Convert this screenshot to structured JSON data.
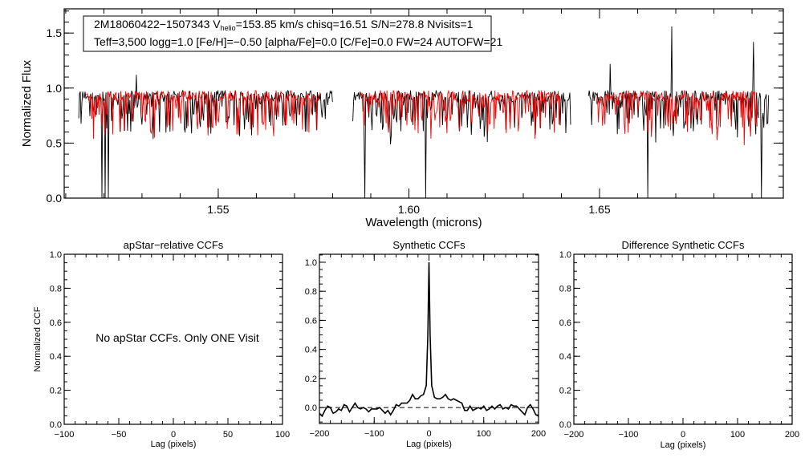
{
  "info_box": {
    "line1_a": "2M18060422−1507343  V",
    "line1_sub": "helio",
    "line1_b": "=153.85 km/s  chisq=16.51  S/N=278.8  Nvisits=1",
    "line2": "Teff=3,500 logg=1.0 [Fe/H]=−0.50 [alpha/Fe]=0.0 [C/Fe]=0.0 FW=24 AUTOFW=21"
  },
  "chart_data": [
    {
      "id": "spectrum",
      "type": "line",
      "title": "",
      "xlabel": "Wavelength (microns)",
      "ylabel": "Normalized Flux",
      "xlim": [
        1.5096,
        1.6982
      ],
      "ylim": [
        0,
        1.72
      ],
      "xticks": [
        {
          "v": 1.55,
          "label": "1.55"
        },
        {
          "v": 1.6,
          "label": "1.60"
        },
        {
          "v": 1.65,
          "label": "1.65"
        }
      ],
      "xminor": 0.01,
      "yticks": [
        {
          "v": 0,
          "label": "0.0"
        },
        {
          "v": 0.5,
          "label": "0.5"
        },
        {
          "v": 1.0,
          "label": "1.0"
        },
        {
          "v": 1.5,
          "label": "1.5"
        }
      ],
      "yminor": 0.1,
      "series": [
        {
          "name": "observed",
          "color": "#000000"
        },
        {
          "name": "synthetic",
          "color": "#ff0000"
        }
      ],
      "chips": [
        [
          1.5134,
          1.5801
        ],
        [
          1.5853,
          1.6426
        ],
        [
          1.6471,
          1.6945
        ]
      ],
      "continuum": 0.93,
      "deep_features": [
        {
          "x": 1.5195,
          "y": 0.0
        },
        {
          "x": 1.5204,
          "y": 0.0
        },
        {
          "x": 1.5212,
          "y": 0.0
        },
        {
          "x": 1.5885,
          "y": 0.0
        },
        {
          "x": 1.6044,
          "y": 0.0
        },
        {
          "x": 1.6627,
          "y": 0.0
        },
        {
          "x": 1.6903,
          "y": 0.0
        },
        {
          "x": 1.6924,
          "y": 0.0
        }
      ],
      "spikes": [
        {
          "x": 1.6689,
          "y": 1.56
        },
        {
          "x": 1.6903,
          "y": 1.42
        },
        {
          "x": 1.5285,
          "y": 1.12
        },
        {
          "x": 1.6527,
          "y": 1.22
        }
      ]
    },
    {
      "id": "apstar",
      "type": "line",
      "title": "apStar−relative CCFs",
      "xlabel": "Lag (pixels)",
      "ylabel": "Normalized CCF",
      "xlim": [
        -100,
        100
      ],
      "ylim": [
        0,
        1
      ],
      "xticks": [
        {
          "v": -100,
          "label": "−100"
        },
        {
          "v": -50,
          "label": "−50"
        },
        {
          "v": 0,
          "label": "0"
        },
        {
          "v": 50,
          "label": "50"
        },
        {
          "v": 100,
          "label": "100"
        }
      ],
      "xminor": 10,
      "yticks": [
        {
          "v": 0,
          "label": "0.0"
        },
        {
          "v": 0.2,
          "label": "0.2"
        },
        {
          "v": 0.4,
          "label": "0.4"
        },
        {
          "v": 0.6,
          "label": "0.6"
        },
        {
          "v": 0.8,
          "label": "0.8"
        },
        {
          "v": 1.0,
          "label": "1.0"
        }
      ],
      "yminor": 0.05,
      "annotation": "No apStar CCFs.  Only ONE Visit",
      "series": []
    },
    {
      "id": "synthetic",
      "type": "line",
      "title": "Synthetic CCFs",
      "xlabel": "Lag (pixels)",
      "ylabel": "",
      "xlim": [
        -200,
        200
      ],
      "ylim": [
        -0.11,
        1.055
      ],
      "xticks": [
        {
          "v": -200,
          "label": "−200"
        },
        {
          "v": -100,
          "label": "−100"
        },
        {
          "v": 0,
          "label": "0"
        },
        {
          "v": 100,
          "label": "100"
        },
        {
          "v": 200,
          "label": "200"
        }
      ],
      "xminor": 20,
      "yticks": [
        {
          "v": 0,
          "label": "0.0"
        },
        {
          "v": 0.2,
          "label": "0.2"
        },
        {
          "v": 0.4,
          "label": "0.4"
        },
        {
          "v": 0.6,
          "label": "0.6"
        },
        {
          "v": 0.8,
          "label": "0.8"
        },
        {
          "v": 1.0,
          "label": "1.0"
        }
      ],
      "yminor": 0.05,
      "reference_line": 0,
      "series": [
        {
          "name": "ccf",
          "color": "#000000",
          "x": [
            -200,
            -195,
            -190,
            -185,
            -180,
            -175,
            -170,
            -165,
            -160,
            -155,
            -150,
            -145,
            -140,
            -135,
            -130,
            -125,
            -120,
            -115,
            -110,
            -105,
            -100,
            -95,
            -90,
            -85,
            -80,
            -75,
            -70,
            -65,
            -60,
            -55,
            -50,
            -45,
            -40,
            -35,
            -30,
            -25,
            -20,
            -15,
            -10,
            -5,
            -2,
            0,
            2,
            5,
            10,
            15,
            20,
            25,
            30,
            35,
            40,
            45,
            50,
            55,
            60,
            65,
            70,
            75,
            80,
            85,
            90,
            95,
            100,
            105,
            110,
            115,
            120,
            125,
            130,
            135,
            140,
            145,
            150,
            155,
            160,
            165,
            170,
            175,
            180,
            185,
            190,
            195,
            200
          ],
          "y": [
            -0.04,
            -0.06,
            -0.02,
            0.01,
            0.0,
            -0.04,
            -0.03,
            -0.01,
            -0.02,
            0.02,
            0.01,
            -0.03,
            0.0,
            0.03,
            0.0,
            -0.01,
            0.0,
            -0.01,
            -0.03,
            -0.01,
            -0.01,
            -0.01,
            0.0,
            -0.02,
            -0.04,
            -0.02,
            -0.05,
            -0.02,
            0.02,
            0.01,
            0.03,
            0.03,
            0.03,
            0.05,
            0.09,
            0.06,
            0.06,
            0.08,
            0.09,
            0.15,
            0.5,
            1.0,
            0.5,
            0.15,
            0.07,
            0.06,
            0.06,
            0.07,
            0.09,
            0.06,
            0.05,
            0.06,
            0.05,
            0.04,
            0.03,
            -0.02,
            -0.02,
            0.01,
            -0.02,
            -0.01,
            0.0,
            -0.01,
            0.01,
            -0.02,
            -0.01,
            0.01,
            -0.01,
            0.01,
            0.02,
            -0.01,
            0.0,
            -0.01,
            0.02,
            0.01,
            0.01,
            -0.01,
            -0.03,
            -0.05,
            0.0,
            0.02,
            -0.01,
            -0.05,
            -0.06
          ]
        }
      ]
    },
    {
      "id": "difference",
      "type": "line",
      "title": "Difference Synthetic CCFs",
      "xlabel": "Lag (pixels)",
      "ylabel": "",
      "xlim": [
        -200,
        200
      ],
      "ylim": [
        0,
        1
      ],
      "xticks": [
        {
          "v": -200,
          "label": "−200"
        },
        {
          "v": -100,
          "label": "−100"
        },
        {
          "v": 0,
          "label": "0"
        },
        {
          "v": 100,
          "label": "100"
        },
        {
          "v": 200,
          "label": "200"
        }
      ],
      "xminor": 20,
      "yticks": [
        {
          "v": 0,
          "label": "0.0"
        },
        {
          "v": 0.2,
          "label": "0.2"
        },
        {
          "v": 0.4,
          "label": "0.4"
        },
        {
          "v": 0.6,
          "label": "0.6"
        },
        {
          "v": 0.8,
          "label": "0.8"
        },
        {
          "v": 1.0,
          "label": "1.0"
        }
      ],
      "yminor": 0.05,
      "series": [
        {
          "name": "difference",
          "color": "#000000",
          "x": [
            -200,
            200
          ],
          "y": [
            0,
            0
          ]
        }
      ]
    }
  ]
}
